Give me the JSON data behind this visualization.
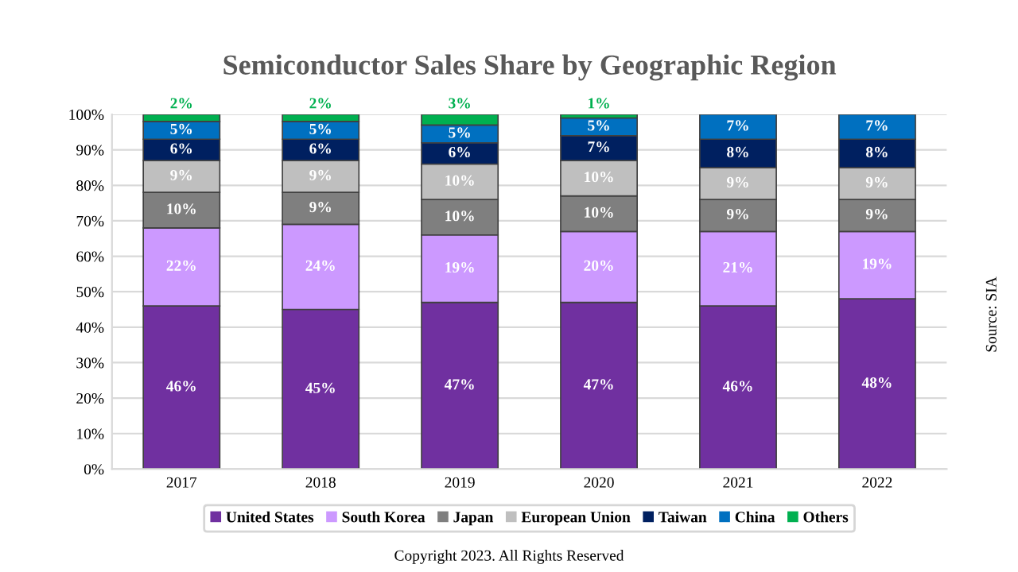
{
  "chart_data": {
    "type": "bar",
    "title": "Semiconductor Sales Share by Geographic Region",
    "categories": [
      "2017",
      "2018",
      "2019",
      "2020",
      "2021",
      "2022"
    ],
    "stacked": true,
    "series": [
      {
        "name": "United States",
        "color": "#7030a0",
        "values": [
          46,
          45,
          47,
          47,
          46,
          48
        ],
        "value_labels": [
          "46%",
          "45%",
          "47%",
          "47%",
          "46%",
          "48%"
        ]
      },
      {
        "name": "South Korea",
        "color": "#cc99ff",
        "values": [
          22,
          24,
          19,
          20,
          21,
          19
        ],
        "value_labels": [
          "22%",
          "24%",
          "19%",
          "20%",
          "21%",
          "19%"
        ]
      },
      {
        "name": "Japan",
        "color": "#7f7f7f",
        "values": [
          10,
          9,
          10,
          10,
          9,
          9
        ],
        "value_labels": [
          "10%",
          "9%",
          "10%",
          "10%",
          "9%",
          "9%"
        ]
      },
      {
        "name": "European Union",
        "color": "#bfbfbf",
        "values": [
          9,
          9,
          10,
          10,
          9,
          9
        ],
        "value_labels": [
          "9%",
          "9%",
          "10%",
          "10%",
          "9%",
          "9%"
        ]
      },
      {
        "name": "Taiwan",
        "color": "#002060",
        "values": [
          6,
          6,
          6,
          7,
          8,
          8
        ],
        "value_labels": [
          "6%",
          "6%",
          "6%",
          "7%",
          "8%",
          "8%"
        ]
      },
      {
        "name": "China",
        "color": "#0070c0",
        "values": [
          5,
          5,
          5,
          5,
          7,
          7
        ],
        "value_labels": [
          "5%",
          "5%",
          "5%",
          "5%",
          "7%",
          "7%"
        ]
      },
      {
        "name": "Others",
        "color": "#00b050",
        "values": [
          2,
          2,
          3,
          1,
          null,
          null
        ],
        "value_labels": [
          "2%",
          "2%",
          "3%",
          "1%",
          null,
          null
        ]
      }
    ],
    "ylim": [
      0,
      100
    ],
    "yticks": [
      {
        "value": 0,
        "label": "0%"
      },
      {
        "value": 10,
        "label": "10%"
      },
      {
        "value": 20,
        "label": "20%"
      },
      {
        "value": 30,
        "label": "30%"
      },
      {
        "value": 40,
        "label": "40%"
      },
      {
        "value": 50,
        "label": "50%"
      },
      {
        "value": 60,
        "label": "60%"
      },
      {
        "value": 70,
        "label": "70%"
      },
      {
        "value": 80,
        "label": "80%"
      },
      {
        "value": 90,
        "label": "90%"
      },
      {
        "value": 100,
        "label": "100%"
      }
    ],
    "grid": "y",
    "legend": "bottom",
    "annotations": [
      "Source: SIA",
      "Copyright 2023. All Rights Reserved"
    ]
  }
}
